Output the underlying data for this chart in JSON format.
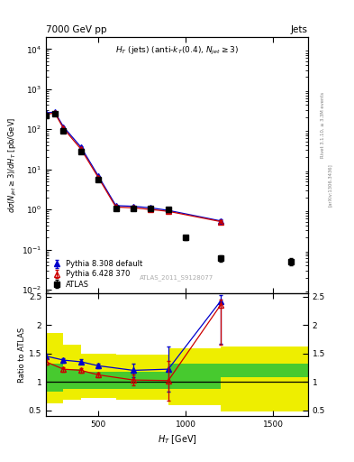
{
  "title_left": "7000 GeV pp",
  "title_right": "Jets",
  "watermark": "ATLAS_2011_S9128077",
  "ylabel_main": "d\\sigma(N_{jet} \\geq 3) / dH_T [pb/GeV]",
  "ylabel_ratio": "Ratio to ATLAS",
  "xlabel": "H_T [GeV]",
  "atlas_x": [
    200,
    250,
    300,
    400,
    500,
    600,
    700,
    800,
    900,
    1000,
    1200,
    1600
  ],
  "atlas_y": [
    220,
    240,
    90,
    28,
    5.5,
    1.05,
    1.05,
    1.05,
    1.0,
    0.2,
    0.06,
    0.05
  ],
  "atlas_yerr_lo": [
    15,
    15,
    7,
    2.5,
    0.4,
    0.08,
    0.08,
    0.1,
    0.1,
    0.03,
    0.01,
    0.01
  ],
  "atlas_yerr_hi": [
    15,
    15,
    7,
    2.5,
    0.4,
    0.08,
    0.08,
    0.1,
    0.1,
    0.03,
    0.01,
    0.01
  ],
  "pythia6_x": [
    200,
    250,
    300,
    400,
    500,
    600,
    700,
    800,
    900,
    1200
  ],
  "pythia6_y": [
    235,
    255,
    105,
    32,
    6.2,
    1.15,
    1.1,
    1.0,
    0.9,
    0.5
  ],
  "pythia6_yerr": [
    5,
    5,
    3,
    1.2,
    0.2,
    0.05,
    0.05,
    0.05,
    0.08,
    0.04
  ],
  "pythia8_x": [
    200,
    250,
    300,
    400,
    500,
    600,
    700,
    800,
    900,
    1200
  ],
  "pythia8_y": [
    255,
    270,
    115,
    36,
    6.8,
    1.25,
    1.2,
    1.1,
    0.95,
    0.52
  ],
  "pythia8_yerr": [
    5,
    5,
    3,
    1.2,
    0.2,
    0.05,
    0.05,
    0.05,
    0.08,
    0.04
  ],
  "ratio6_x": [
    200,
    300,
    400,
    500,
    700,
    900,
    1200
  ],
  "ratio6_y": [
    1.35,
    1.22,
    1.2,
    1.12,
    1.03,
    1.02,
    2.35
  ],
  "ratio6_yerr_lo": [
    0.05,
    0.04,
    0.04,
    0.04,
    0.1,
    0.35,
    0.7
  ],
  "ratio6_yerr_hi": [
    0.05,
    0.04,
    0.04,
    0.04,
    0.1,
    0.35,
    0.1
  ],
  "ratio8_x": [
    200,
    300,
    400,
    500,
    700,
    900,
    1200
  ],
  "ratio8_y": [
    1.45,
    1.38,
    1.35,
    1.28,
    1.2,
    1.22,
    2.42
  ],
  "ratio8_yerr_lo": [
    0.05,
    0.04,
    0.04,
    0.04,
    0.12,
    0.4,
    0.75
  ],
  "ratio8_yerr_hi": [
    0.05,
    0.04,
    0.04,
    0.04,
    0.12,
    0.4,
    0.1
  ],
  "band_edges": [
    200,
    300,
    400,
    600,
    900,
    1200,
    1700
  ],
  "yellow_lo": [
    0.62,
    0.72,
    0.75,
    0.72,
    0.62,
    0.48,
    0.48
  ],
  "yellow_hi": [
    1.82,
    1.62,
    1.52,
    1.48,
    1.62,
    1.62,
    1.62
  ],
  "green_lo": [
    0.82,
    0.88,
    0.88,
    0.87,
    0.87,
    1.08,
    1.08
  ],
  "green_hi": [
    1.32,
    1.22,
    1.18,
    1.18,
    1.32,
    1.32,
    1.32
  ],
  "atlas_color": "#000000",
  "pythia6_color": "#cc0000",
  "pythia8_color": "#0000cc",
  "green_color": "#00bb44",
  "yellow_color": "#eeee00",
  "xlim": [
    200,
    1700
  ],
  "ylim_main": [
    0.008,
    20000
  ],
  "ylim_ratio": [
    0.4,
    2.55
  ],
  "yticks_ratio": [
    0.5,
    1.0,
    1.5,
    2.0,
    2.5
  ]
}
